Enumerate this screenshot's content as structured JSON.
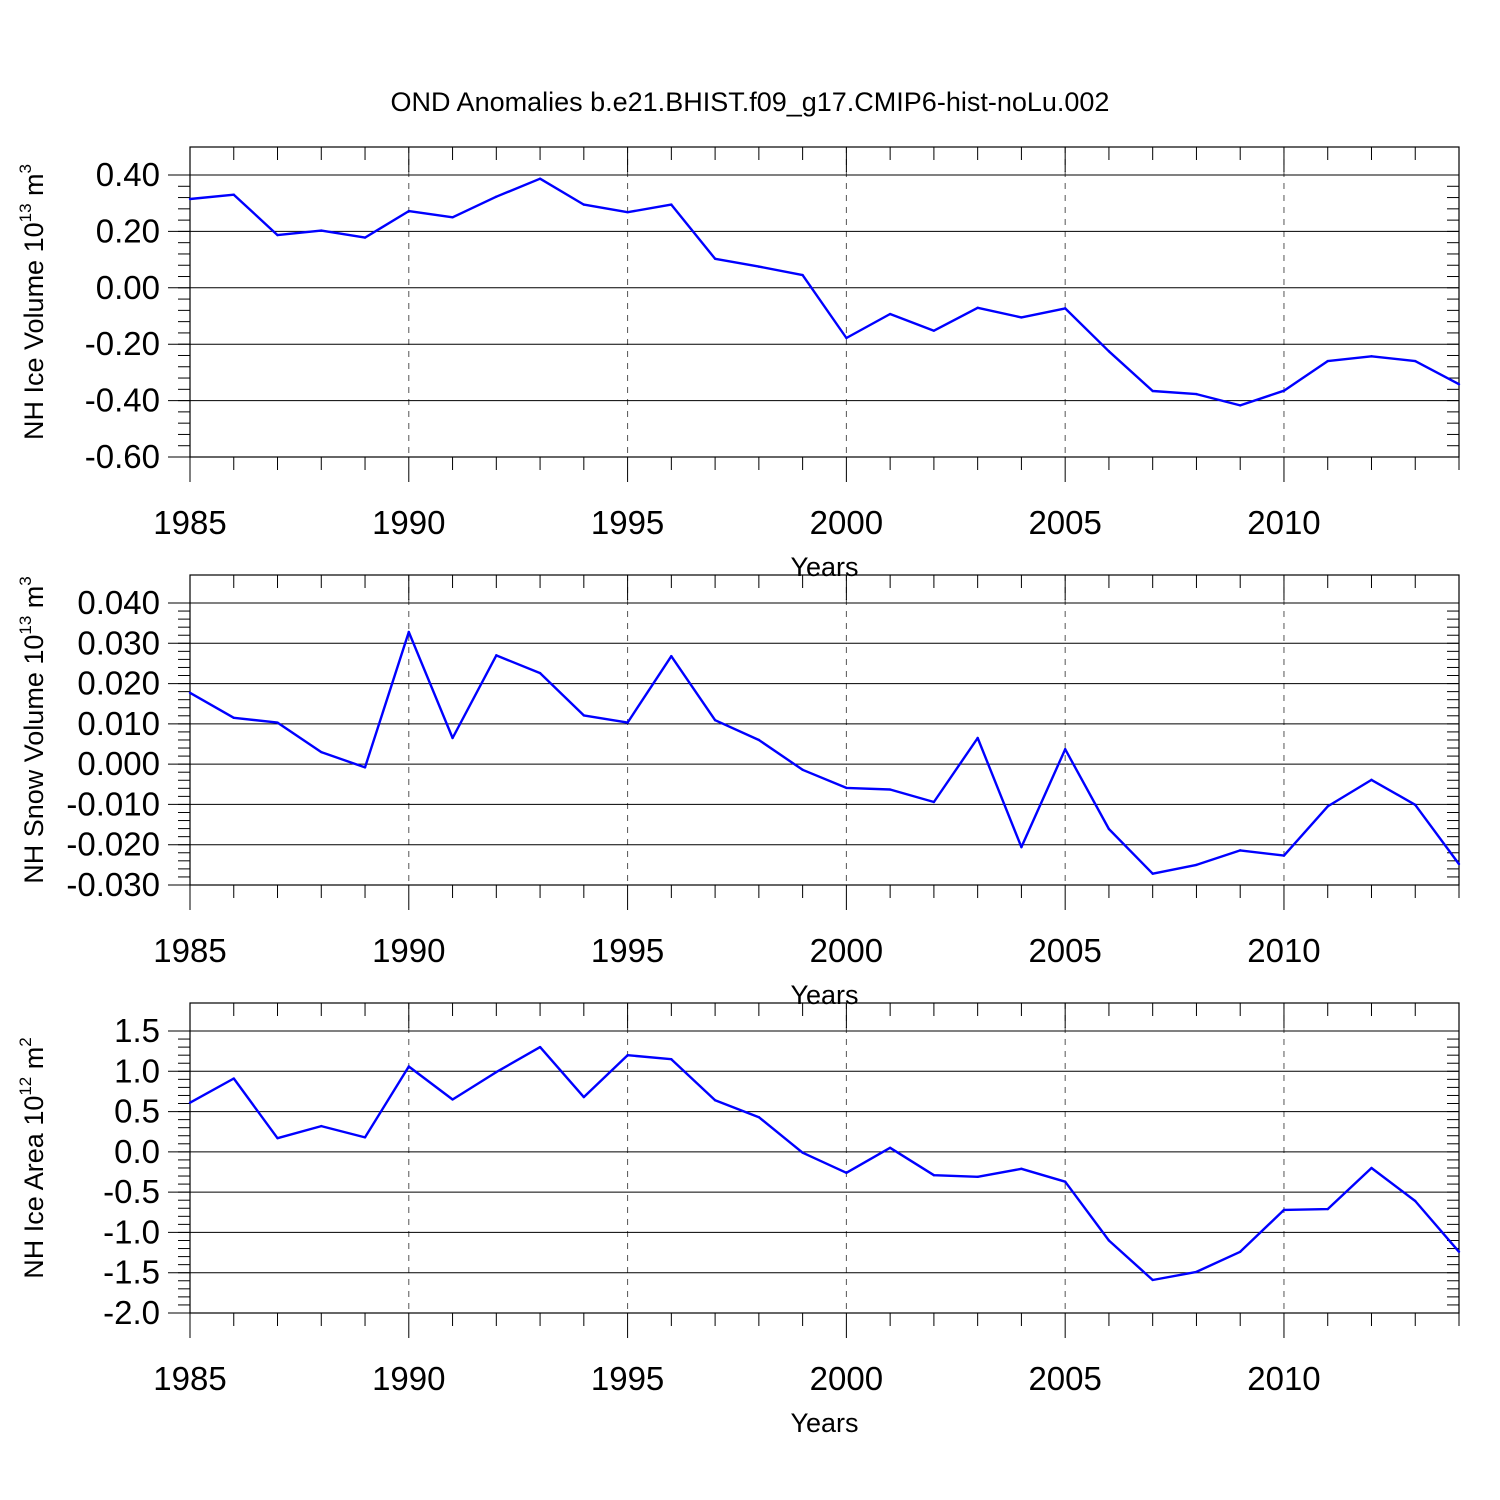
{
  "figure": {
    "title": "OND Anomalies b.e21.BHIST.f09_g17.CMIP6-hist-noLu.002",
    "line_color": "#0000ff"
  },
  "chart_data": [
    {
      "type": "line",
      "xlabel": "Years",
      "ylabel": "NH Ice Volume 10",
      "ylabel_exp": "13",
      "ylabel_unit": " m",
      "ylabel_unit_exp": "3",
      "xlim": [
        1985,
        2014
      ],
      "ylim": [
        -0.6,
        0.4
      ],
      "yticks": [
        -0.6,
        -0.4,
        -0.2,
        0.0,
        0.2,
        0.4
      ],
      "ytick_labels": [
        "-0.60",
        "-0.40",
        "-0.20",
        "0.00",
        "0.20",
        "0.40"
      ],
      "xticks": [
        1985,
        1990,
        1995,
        2000,
        2005,
        2010
      ],
      "xtick_labels": [
        "1985",
        "1990",
        "1995",
        "2000",
        "2005",
        "2010"
      ],
      "grid": "vertical dashed at labeled years",
      "x": [
        1985,
        1986,
        1987,
        1988,
        1989,
        1990,
        1991,
        1992,
        1993,
        1994,
        1995,
        1996,
        1997,
        1998,
        1999,
        2000,
        2001,
        2002,
        2003,
        2004,
        2005,
        2006,
        2007,
        2008,
        2009,
        2010,
        2011,
        2012,
        2013,
        2014
      ],
      "values": [
        0.315,
        0.33,
        0.187,
        0.203,
        0.178,
        0.272,
        0.25,
        0.323,
        0.387,
        0.295,
        0.268,
        0.295,
        0.103,
        0.075,
        0.045,
        -0.178,
        -0.093,
        -0.152,
        -0.071,
        -0.105,
        -0.073,
        -0.225,
        -0.366,
        -0.377,
        -0.417,
        -0.365,
        -0.26,
        -0.243,
        -0.26,
        -0.342
      ]
    },
    {
      "type": "line",
      "xlabel": "Years",
      "ylabel": "NH Snow Volume 10",
      "ylabel_exp": "13",
      "ylabel_unit": " m",
      "ylabel_unit_exp": "3",
      "xlim": [
        1985,
        2014
      ],
      "ylim": [
        -0.03,
        0.04
      ],
      "yticks": [
        -0.03,
        -0.02,
        -0.01,
        0.0,
        0.01,
        0.02,
        0.03,
        0.04
      ],
      "ytick_labels": [
        "-0.030",
        "-0.020",
        "-0.010",
        "0.000",
        "0.010",
        "0.020",
        "0.030",
        "0.040"
      ],
      "xticks": [
        1985,
        1990,
        1995,
        2000,
        2005,
        2010
      ],
      "xtick_labels": [
        "1985",
        "1990",
        "1995",
        "2000",
        "2005",
        "2010"
      ],
      "grid": "vertical dashed at labeled years",
      "x": [
        1985,
        1986,
        1987,
        1988,
        1989,
        1990,
        1991,
        1992,
        1993,
        1994,
        1995,
        1996,
        1997,
        1998,
        1999,
        2000,
        2001,
        2002,
        2003,
        2004,
        2005,
        2006,
        2007,
        2008,
        2009,
        2010,
        2011,
        2012,
        2013,
        2014
      ],
      "values": [
        0.0177,
        0.0115,
        0.0103,
        0.003,
        -0.0008,
        0.0328,
        0.0065,
        0.027,
        0.0226,
        0.0121,
        0.0103,
        0.0268,
        0.0109,
        0.006,
        -0.0014,
        -0.0059,
        -0.0063,
        -0.0094,
        0.0065,
        -0.0206,
        0.0037,
        -0.0161,
        -0.0272,
        -0.025,
        -0.0214,
        -0.0227,
        -0.0105,
        -0.0039,
        -0.0101,
        -0.0248
      ]
    },
    {
      "type": "line",
      "xlabel": "Years",
      "ylabel": "NH Ice Area 10",
      "ylabel_exp": "12",
      "ylabel_unit": " m",
      "ylabel_unit_exp": "2",
      "xlim": [
        1985,
        2014
      ],
      "ylim": [
        -2.0,
        1.5
      ],
      "yticks": [
        -2.0,
        -1.5,
        -1.0,
        -0.5,
        0.0,
        0.5,
        1.0,
        1.5
      ],
      "ytick_labels": [
        "-2.0",
        "-1.5",
        "-1.0",
        "-0.5",
        "0.0",
        "0.5",
        "1.0",
        "1.5"
      ],
      "xticks": [
        1985,
        1990,
        1995,
        2000,
        2005,
        2010
      ],
      "xtick_labels": [
        "1985",
        "1990",
        "1995",
        "2000",
        "2005",
        "2010"
      ],
      "grid": "vertical dashed at labeled years",
      "x": [
        1985,
        1986,
        1987,
        1988,
        1989,
        1990,
        1991,
        1992,
        1993,
        1994,
        1995,
        1996,
        1997,
        1998,
        1999,
        2000,
        2001,
        2002,
        2003,
        2004,
        2005,
        2006,
        2007,
        2008,
        2009,
        2010,
        2011,
        2012,
        2013,
        2014
      ],
      "values": [
        0.61,
        0.91,
        0.17,
        0.32,
        0.18,
        1.06,
        0.65,
        0.99,
        1.3,
        0.68,
        1.2,
        1.15,
        0.64,
        0.43,
        -0.01,
        -0.26,
        0.05,
        -0.29,
        -0.31,
        -0.21,
        -0.37,
        -1.1,
        -1.59,
        -1.49,
        -1.24,
        -0.72,
        -0.71,
        -0.2,
        -0.61,
        -1.24
      ]
    }
  ]
}
